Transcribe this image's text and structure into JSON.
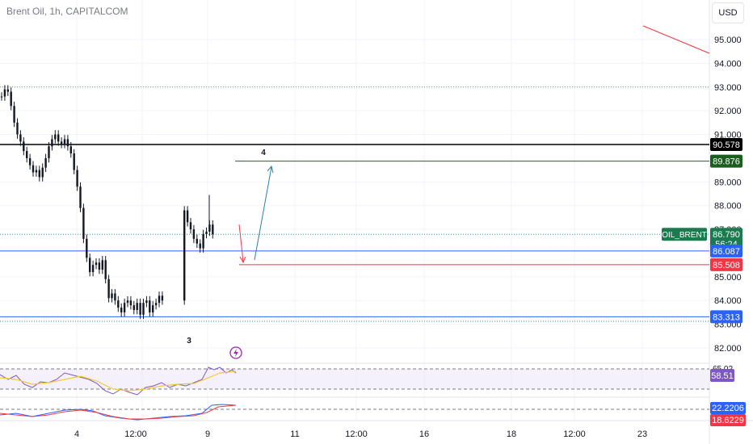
{
  "header": {
    "title": "Brent Oil, 1h, CAPITALCOM",
    "currency_button": "USD"
  },
  "price_axis": {
    "ticks": [
      "95.000",
      "94.000",
      "93.000",
      "92.000",
      "91.000",
      "89.000",
      "88.000",
      "87.000",
      "85.000",
      "84.000",
      "83.000",
      "82.000"
    ]
  },
  "time_axis": {
    "labels": [
      "4",
      "12:00",
      "9",
      "11",
      "12:00",
      "16",
      "18",
      "12:00",
      "23"
    ]
  },
  "price_labels": {
    "black_line": "90.578",
    "green_line": "89.876",
    "symbol_tag": "OIL_BRENT",
    "last_price": "86.790",
    "countdown": "56:24",
    "blue_line_upper": "86.087",
    "red_line": "85.508",
    "blue_line_lower": "83.313"
  },
  "wave_labels": {
    "wave3": "3",
    "wave4": "4"
  },
  "rsi_pane": {
    "upper_band": "65.02",
    "value": "58.51"
  },
  "macd_pane": {
    "value_blue": "22.2206",
    "value_red": "18.6229"
  },
  "colors": {
    "green": "#1b5e20",
    "blue": "#2962ff",
    "red": "#f23645",
    "black": "#000000",
    "candle": "#131722",
    "rsi_line": "#7e57c2",
    "rsi_ma": "#f5c83a",
    "arrow_up": "#2d7fa8",
    "arrow_down": "#f23645",
    "lightning": "#9c27b0"
  },
  "icons": {
    "flash": "lightning-icon"
  },
  "chart_data": {
    "type": "candlestick",
    "y_range": [
      81.6,
      95.8
    ],
    "ticker": "OIL_BRENT",
    "last": 86.79,
    "closes": [
      92.6,
      92.9,
      92.8,
      92.2,
      91.5,
      91.0,
      90.7,
      90.3,
      90.0,
      89.7,
      89.4,
      89.5,
      89.2,
      89.6,
      90.0,
      90.5,
      90.8,
      91.0,
      90.7,
      90.6,
      90.8,
      90.5,
      90.2,
      89.5,
      88.8,
      87.9,
      86.6,
      85.8,
      85.2,
      85.5,
      85.6,
      85.3,
      85.7,
      84.9,
      84.1,
      84.3,
      84.0,
      83.7,
      83.5,
      83.9,
      84.0,
      83.8,
      83.6,
      83.9,
      83.4,
      83.9,
      84.0,
      83.5,
      83.8,
      83.9,
      84.2,
      84.0,
      null,
      null,
      null,
      null,
      null,
      null,
      87.8,
      87.3,
      87.0,
      86.6,
      86.4,
      86.2,
      86.8,
      86.9,
      87.2,
      86.79
    ]
  }
}
